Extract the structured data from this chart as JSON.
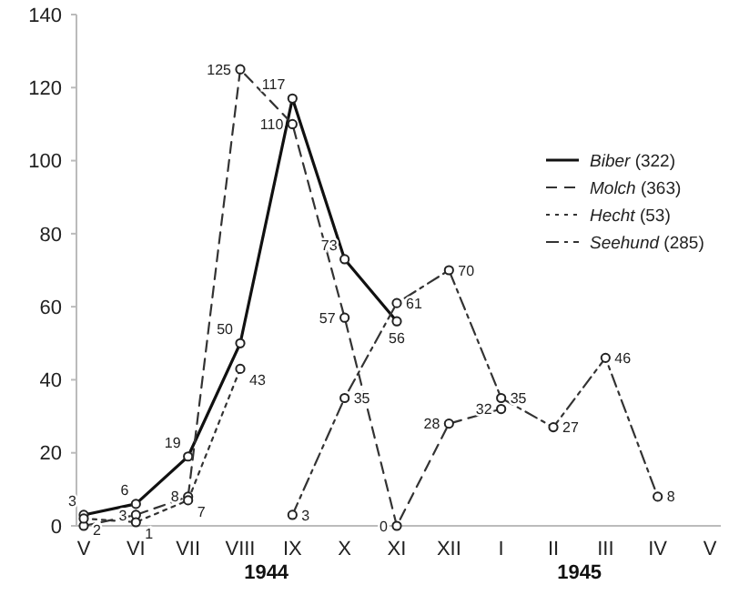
{
  "chart_data": {
    "type": "line",
    "categories": [
      "V",
      "VI",
      "VII",
      "VIII",
      "IX",
      "X",
      "XI",
      "XII",
      "I",
      "II",
      "III",
      "IV",
      "V"
    ],
    "ylim": [
      0,
      140
    ],
    "yticks": [
      0,
      20,
      40,
      60,
      80,
      100,
      120,
      140
    ],
    "grid": false,
    "legend": "top right",
    "marker": "circle",
    "annotations": [
      "1944",
      "1945"
    ],
    "series": [
      {
        "name": "Biber (322)",
        "color": "#111111",
        "line_style": "solid",
        "values": [
          3,
          6,
          19,
          50,
          117,
          73,
          56,
          null,
          null,
          null,
          null,
          null,
          null
        ],
        "value_labels": [
          "3",
          "6",
          "19",
          "50",
          "117",
          "73",
          "56",
          null,
          null,
          null,
          null,
          null,
          null
        ]
      },
      {
        "name": "Molch (363)",
        "color": "#333333",
        "line_style": "dashed",
        "values": [
          0,
          3,
          8,
          125,
          110,
          57,
          0,
          28,
          32,
          null,
          null,
          null,
          null
        ],
        "value_labels": [
          null,
          "3",
          "8",
          "125",
          "110",
          "57",
          "0",
          "28",
          "32",
          null,
          null,
          null,
          null
        ]
      },
      {
        "name": "Hecht (53)",
        "color": "#333333",
        "line_style": "dotted",
        "values": [
          2,
          1,
          7,
          43,
          null,
          null,
          null,
          null,
          null,
          null,
          null,
          null,
          null
        ],
        "value_labels": [
          "2",
          "1",
          "7",
          "43",
          null,
          null,
          null,
          null,
          null,
          null,
          null,
          null,
          null
        ]
      },
      {
        "name": "Seehund (285)",
        "color": "#333333",
        "line_style": "dashdot",
        "values": [
          null,
          null,
          null,
          null,
          3,
          35,
          61,
          70,
          35,
          27,
          46,
          8,
          null
        ],
        "value_labels": [
          null,
          null,
          null,
          null,
          "3",
          "35",
          "61",
          "70",
          "35",
          "27",
          "46",
          "8",
          null
        ]
      }
    ]
  }
}
